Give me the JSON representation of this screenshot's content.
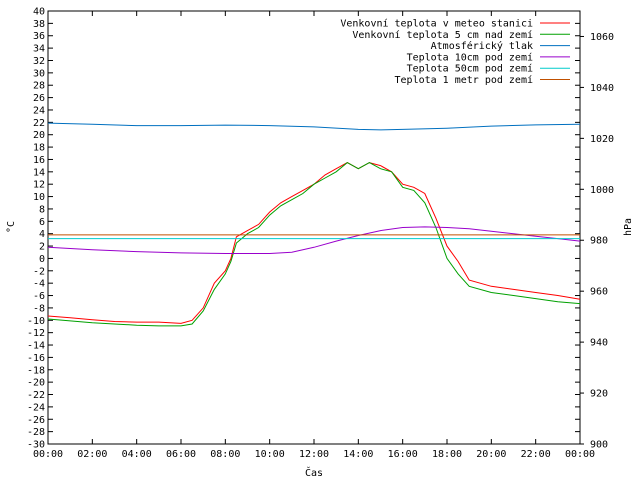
{
  "chart_data": {
    "type": "line",
    "xlabel": "Čas",
    "ylabel_left": "°C",
    "ylabel_right": "hPa",
    "x_ticks": [
      "00:00",
      "02:00",
      "04:00",
      "06:00",
      "08:00",
      "10:00",
      "12:00",
      "14:00",
      "16:00",
      "18:00",
      "20:00",
      "22:00",
      "00:00"
    ],
    "x_range_hours": [
      0,
      24
    ],
    "y_left_range": [
      -30,
      40
    ],
    "y_left_step": 2,
    "y_right_range": [
      900,
      1070
    ],
    "y_right_ticks": [
      900,
      920,
      940,
      960,
      980,
      1000,
      1020,
      1040,
      1060
    ],
    "grid": false,
    "legend_position": "top-right",
    "series": [
      {
        "name": "Venkovní teplota v meteo stanici",
        "axis": "left",
        "color": "#ff0000",
        "x": [
          0,
          1,
          2,
          3,
          4,
          5,
          6,
          6.5,
          7,
          7.5,
          8,
          8.25,
          8.5,
          9,
          9.5,
          10,
          10.5,
          11,
          11.5,
          12,
          12.5,
          13,
          13.5,
          14,
          14.5,
          15,
          15.5,
          16,
          16.5,
          17,
          17.5,
          18,
          18.5,
          19,
          20,
          21,
          22,
          23,
          24
        ],
        "y": [
          -9.3,
          -9.6,
          -9.9,
          -10.2,
          -10.3,
          -10.3,
          -10.5,
          -10,
          -8,
          -4,
          -2,
          0,
          3.5,
          4.5,
          5.5,
          7.5,
          9,
          10,
          11,
          12,
          13.5,
          14.5,
          15.5,
          14.5,
          15.5,
          15,
          14,
          12,
          11.5,
          10.5,
          6.5,
          2,
          -0.5,
          -3.5,
          -4.5,
          -5,
          -5.5,
          -6,
          -6.6
        ]
      },
      {
        "name": "Venkovní teplota 5 cm nad zemí",
        "axis": "left",
        "color": "#00a000",
        "x": [
          0,
          1,
          2,
          3,
          4,
          5,
          6,
          6.5,
          7,
          7.5,
          8,
          8.25,
          8.5,
          9,
          9.5,
          10,
          10.5,
          11,
          11.5,
          12,
          12.5,
          13,
          13.5,
          14,
          14.5,
          15,
          15.5,
          16,
          16.5,
          17,
          17.5,
          18,
          18.5,
          19,
          20,
          21,
          22,
          23,
          24
        ],
        "y": [
          -9.8,
          -10.1,
          -10.4,
          -10.6,
          -10.8,
          -10.9,
          -10.9,
          -10.6,
          -8.5,
          -5,
          -2.5,
          -0.5,
          2.5,
          4,
          5,
          7,
          8.5,
          9.5,
          10.5,
          12,
          13,
          14,
          15.5,
          14.5,
          15.5,
          14.5,
          14,
          11.5,
          11,
          9,
          5,
          0,
          -2.5,
          -4.5,
          -5.5,
          -6,
          -6.5,
          -7,
          -7.3
        ]
      },
      {
        "name": "Atmosférický tlak",
        "axis": "right",
        "color": "#0070c0",
        "x": [
          0,
          2,
          4,
          6,
          8,
          10,
          12,
          14,
          15,
          16,
          18,
          20,
          22,
          24
        ],
        "y": [
          1026,
          1025.5,
          1025,
          1025,
          1025.2,
          1025,
          1024.5,
          1023.5,
          1023.3,
          1023.5,
          1024,
          1024.8,
          1025.3,
          1025.5
        ]
      },
      {
        "name": "Teplota 10cm pod zemí",
        "axis": "left",
        "color": "#9900cc",
        "x": [
          0,
          2,
          4,
          6,
          8,
          10,
          11,
          12,
          13,
          14,
          15,
          16,
          17,
          18,
          19,
          20,
          21,
          22,
          23,
          24
        ],
        "y": [
          1.8,
          1.4,
          1.1,
          0.9,
          0.8,
          0.8,
          1.0,
          1.8,
          2.8,
          3.7,
          4.5,
          5.0,
          5.1,
          5.0,
          4.8,
          4.4,
          4.0,
          3.6,
          3.2,
          2.8
        ]
      },
      {
        "name": "Teplota 50cm pod zemí",
        "axis": "left",
        "color": "#00cccc",
        "x": [
          0,
          24
        ],
        "y": [
          3.2,
          3.2
        ]
      },
      {
        "name": "Teplota 1 metr pod zemí",
        "axis": "left",
        "color": "#c05000",
        "x": [
          0,
          24
        ],
        "y": [
          3.8,
          3.8
        ]
      }
    ]
  }
}
